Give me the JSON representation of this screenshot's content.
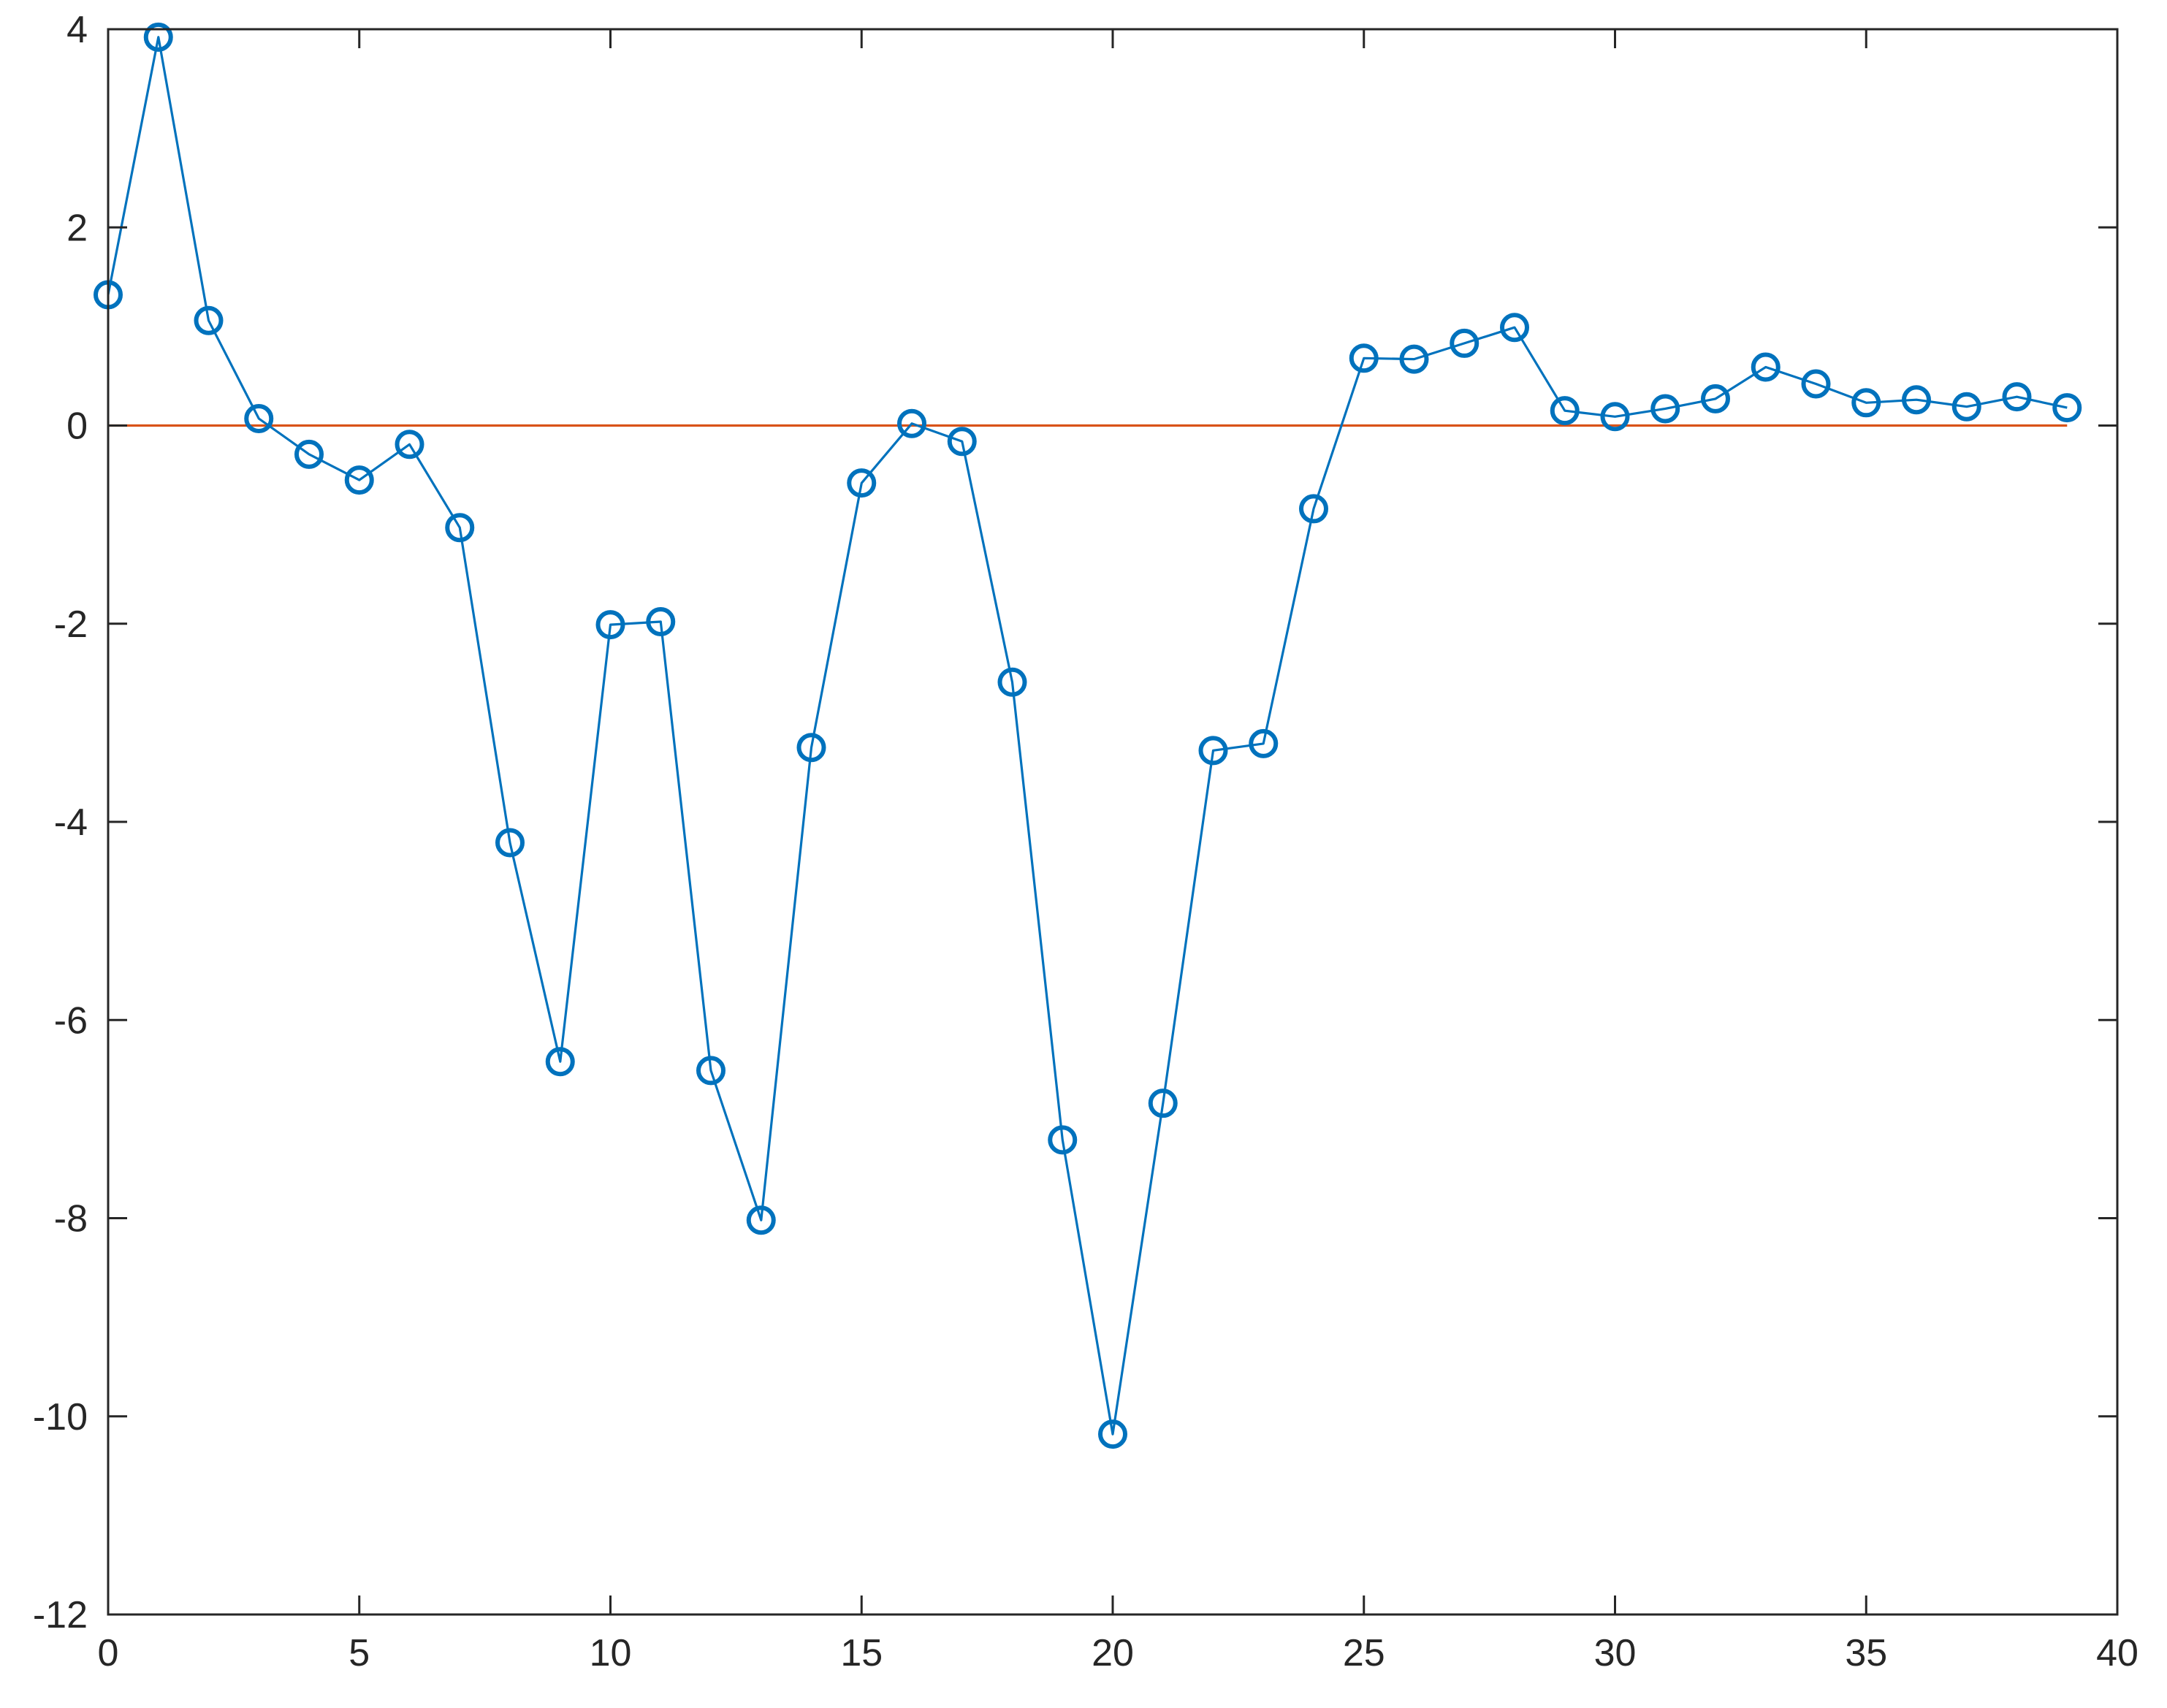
{
  "chart_data": {
    "type": "line",
    "title": "",
    "xlabel": "",
    "ylabel": "",
    "xlim": [
      0,
      40
    ],
    "ylim": [
      -12,
      4
    ],
    "x_ticks": [
      "0",
      "5",
      "10",
      "15",
      "20",
      "25",
      "30",
      "35",
      "40"
    ],
    "y_ticks": [
      "4",
      "2",
      "0",
      "-2",
      "-4",
      "-6",
      "-8",
      "-10",
      "-12"
    ],
    "grid": false,
    "legend": "none",
    "series": [
      {
        "color": "#0072BD",
        "marker": "circle",
        "x": [
          0,
          1,
          2,
          3,
          4,
          5,
          6,
          7,
          8,
          9,
          10,
          11,
          12,
          13,
          14,
          15,
          16,
          17,
          18,
          19,
          20,
          21,
          22,
          23,
          24,
          25,
          26,
          27,
          28,
          29,
          30,
          31,
          32,
          33,
          34,
          35,
          36,
          37,
          38,
          39
        ],
        "values": [
          1.32,
          3.92,
          1.06,
          0.07,
          -0.29,
          -0.55,
          -0.19,
          -1.03,
          -4.21,
          -6.42,
          -2.01,
          -1.98,
          -6.51,
          -8.02,
          -3.25,
          -0.58,
          0.02,
          -0.16,
          -2.59,
          -7.21,
          -10.18,
          -6.84,
          -3.28,
          -3.21,
          -0.84,
          0.68,
          0.67,
          0.83,
          0.99,
          0.15,
          0.09,
          0.17,
          0.27,
          0.59,
          0.42,
          0.23,
          0.26,
          0.19,
          0.29,
          0.18
        ]
      },
      {
        "color": "#D95319",
        "marker": "none",
        "x": [
          0,
          39
        ],
        "values": [
          0,
          0
        ]
      }
    ]
  }
}
